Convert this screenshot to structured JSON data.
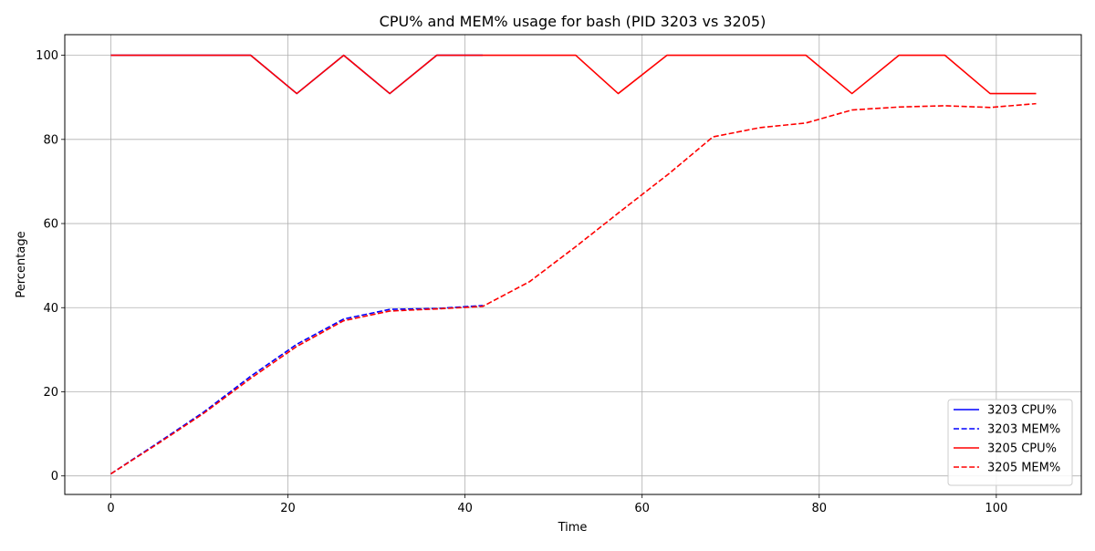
{
  "chart_data": {
    "type": "line",
    "title": "CPU% and MEM% usage for bash (PID 3203 vs 3205)",
    "xlabel": "Time",
    "ylabel": "Percentage",
    "xlim": [
      -5.2,
      109.6
    ],
    "ylim": [
      -4.4,
      104.9
    ],
    "xticks": [
      0,
      20,
      40,
      60,
      80,
      100
    ],
    "yticks": [
      0,
      20,
      40,
      60,
      80,
      100
    ],
    "grid": true,
    "legend_position": "lower-right",
    "series": [
      {
        "name": "3203 CPU%",
        "color": "#0000ff",
        "style": "solid",
        "x": [
          0,
          5.2,
          10.5,
          15.8,
          21,
          26.3,
          31.5,
          36.8,
          42
        ],
        "y": [
          100,
          100,
          100,
          100,
          90.9,
          100,
          90.9,
          100,
          100
        ]
      },
      {
        "name": "3203 MEM%",
        "color": "#0000ff",
        "style": "dashed",
        "x": [
          0,
          5.2,
          10.5,
          15.8,
          21,
          26.3,
          31.5,
          36.8,
          42
        ],
        "y": [
          0.5,
          7.7,
          15.2,
          23.7,
          31.3,
          37.3,
          39.6,
          39.8,
          40.5
        ]
      },
      {
        "name": "3205 CPU%",
        "color": "#ff0000",
        "style": "solid",
        "x": [
          0,
          5.2,
          10.5,
          15.8,
          21,
          26.3,
          31.5,
          36.8,
          42,
          47.3,
          52.5,
          57.3,
          62.8,
          68,
          73.3,
          78.5,
          83.7,
          89,
          94.2,
          99.3,
          104.5
        ],
        "y": [
          100,
          100,
          100,
          100,
          90.9,
          100,
          90.9,
          100,
          100,
          100,
          100,
          90.9,
          100,
          100,
          100,
          100,
          90.9,
          100,
          100,
          90.9,
          90.9
        ]
      },
      {
        "name": "3205 MEM%",
        "color": "#ff0000",
        "style": "dashed",
        "x": [
          0,
          5.2,
          10.5,
          15.8,
          21,
          26.3,
          31.5,
          36.8,
          42,
          47.3,
          52.5,
          57.8,
          63,
          68,
          73.3,
          78.5,
          83.7,
          89,
          94.2,
          99.3,
          104.5
        ],
        "y": [
          0.5,
          7.5,
          14.9,
          23.2,
          30.8,
          36.9,
          39.2,
          39.7,
          40.3,
          46.2,
          54.5,
          63.3,
          71.8,
          80.6,
          82.8,
          83.9,
          87,
          87.7,
          88,
          87.6,
          88.5
        ]
      }
    ]
  }
}
